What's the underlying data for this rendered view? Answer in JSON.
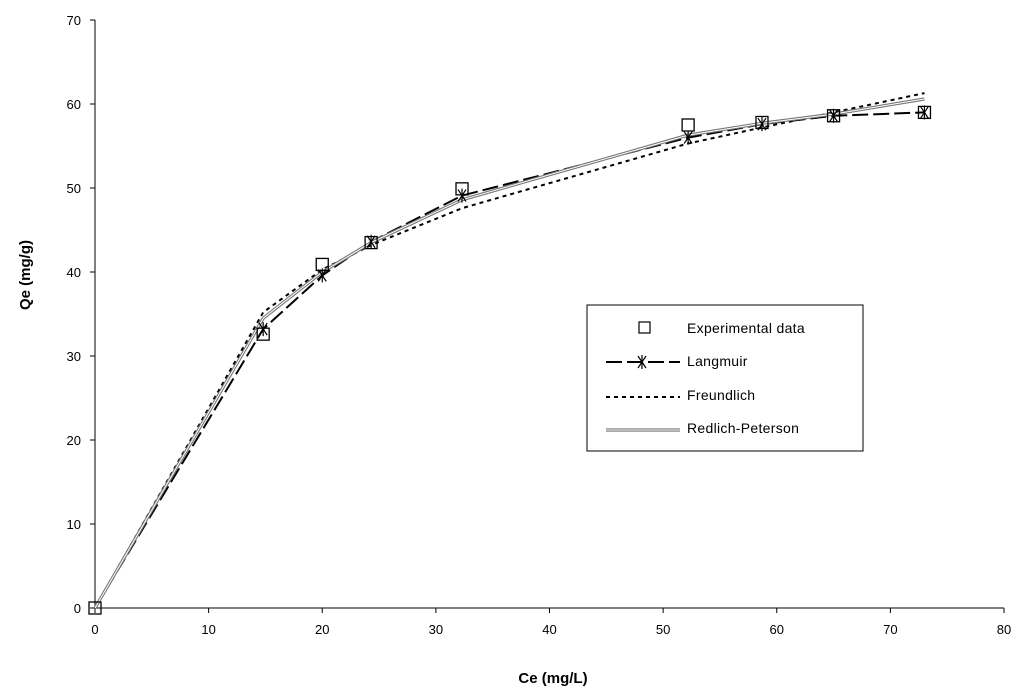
{
  "chart_data": {
    "type": "line",
    "title": "",
    "xlabel": "Ce (mg/L)",
    "ylabel": "Qe (mg/g)",
    "xlim": [
      0,
      80
    ],
    "ylim": [
      0,
      70
    ],
    "xticks": [
      0,
      10,
      20,
      30,
      40,
      50,
      60,
      70,
      80
    ],
    "yticks": [
      0,
      10,
      20,
      30,
      40,
      50,
      60,
      70
    ],
    "grid": false,
    "legend_position": "right",
    "series": [
      {
        "name": "Experimental data",
        "style": "markers",
        "marker": "open-square",
        "x": [
          0,
          14.8,
          20,
          24.3,
          32.3,
          52.2,
          58.7,
          65,
          73
        ],
        "y": [
          0,
          32.6,
          40.9,
          43.5,
          49.9,
          57.5,
          57.8,
          58.6,
          59
        ]
      },
      {
        "name": "Langmuir",
        "style": "long-dash",
        "marker": "asterisk",
        "x": [
          0,
          14.8,
          20,
          24.3,
          32.3,
          52.2,
          58.7,
          65,
          73
        ],
        "y": [
          0,
          33.2,
          39.6,
          43.6,
          49.1,
          56,
          57.6,
          58.6,
          59
        ]
      },
      {
        "name": "Freundlich",
        "style": "short-dash",
        "x": [
          0,
          14.8,
          20,
          24.3,
          32.3,
          52.2,
          58.7,
          65,
          73
        ],
        "y": [
          0,
          35.2,
          40.3,
          43.2,
          47.6,
          55.3,
          57.2,
          59,
          61.3
        ]
      },
      {
        "name": "Redlich-Peterson",
        "style": "double-line",
        "x": [
          0,
          14.8,
          20,
          24.3,
          32.3,
          52.2,
          58.7,
          65,
          73
        ],
        "y": [
          0,
          34.5,
          40,
          43.5,
          48.6,
          56.3,
          57.7,
          58.8,
          60.6
        ]
      }
    ]
  }
}
